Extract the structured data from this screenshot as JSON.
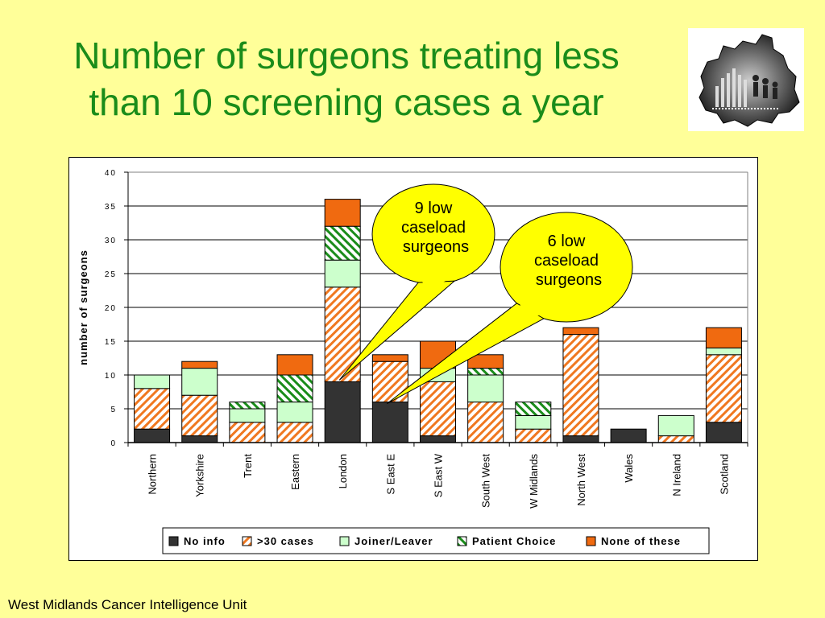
{
  "slide": {
    "title_line1": "Number of surgeons treating less",
    "title_line2": "than 10 screening cases a year",
    "footer": "West Midlands Cancer Intelligence Unit"
  },
  "callouts": [
    {
      "lines": [
        "9 low",
        "caseload",
        "surgeons"
      ],
      "target_category": "London"
    },
    {
      "lines": [
        "6 low",
        "caseload",
        "surgeons"
      ],
      "target_category": "S East E"
    }
  ],
  "colors": {
    "background": "#ffff99",
    "title": "#1a8c1a",
    "no_info": "#333333",
    "over30": "#f07820",
    "joiner": "#ccffcc",
    "patient_choice": "#1a8c1a",
    "none_of_these": "#f06a10",
    "callout": "#ffff00"
  },
  "chart_data": {
    "type": "bar",
    "stacked": true,
    "ylabel": "number of surgeons",
    "xlabel": "",
    "ylim": [
      0,
      40
    ],
    "yticks": [
      "0",
      "5",
      "10",
      "15",
      "20",
      "25",
      "30",
      "35",
      "40"
    ],
    "grid": true,
    "legend_position": "bottom",
    "categories": [
      "Northern",
      "Yorkshire",
      "Trent",
      "Eastern",
      "London",
      "S East E",
      "S East W",
      "South West",
      "W Midlands",
      "North West",
      "Wales",
      "N Ireland",
      "Scotland"
    ],
    "series": [
      {
        "name": "No info",
        "pattern": "solid-dark",
        "values": [
          2,
          1,
          0,
          0,
          9,
          6,
          1,
          0,
          0,
          1,
          2,
          0,
          3
        ]
      },
      {
        "name": ">30 cases",
        "pattern": "hatch-orange",
        "values": [
          6,
          6,
          3,
          3,
          14,
          6,
          8,
          6,
          2,
          15,
          0,
          1,
          10
        ]
      },
      {
        "name": "Joiner/Leaver",
        "pattern": "solid-light-green",
        "values": [
          2,
          4,
          2,
          3,
          4,
          0,
          2,
          4,
          2,
          0,
          0,
          3,
          1
        ]
      },
      {
        "name": "Patient Choice",
        "pattern": "hatch-green",
        "values": [
          0,
          0,
          1,
          4,
          5,
          0,
          0,
          1,
          2,
          0,
          0,
          0,
          0
        ]
      },
      {
        "name": "None of these",
        "pattern": "solid-orange",
        "values": [
          0,
          1,
          0,
          3,
          4,
          1,
          4,
          2,
          0,
          1,
          0,
          0,
          3
        ]
      }
    ]
  }
}
